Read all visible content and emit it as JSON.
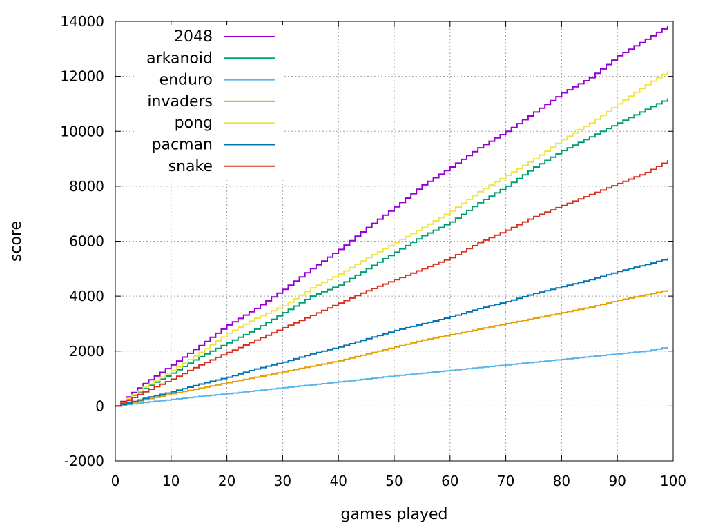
{
  "chart_data": {
    "type": "line",
    "xlabel": "games played",
    "ylabel": "score",
    "xlim": [
      0,
      100
    ],
    "ylim": [
      -2000,
      14000
    ],
    "xticks": [
      0,
      10,
      20,
      30,
      40,
      50,
      60,
      70,
      80,
      90,
      100
    ],
    "yticks": [
      -2000,
      0,
      2000,
      4000,
      6000,
      8000,
      10000,
      12000,
      14000
    ],
    "grid": true,
    "step": true,
    "legend_position": "top-left",
    "x": [
      0,
      5,
      10,
      15,
      20,
      25,
      30,
      35,
      40,
      45,
      50,
      55,
      60,
      65,
      70,
      75,
      80,
      85,
      90,
      95,
      99
    ],
    "series": [
      {
        "name": "2048",
        "color": "#9400d3",
        "values": [
          0,
          820,
          1500,
          2200,
          2950,
          3550,
          4250,
          5000,
          5700,
          6500,
          7250,
          8050,
          8700,
          9400,
          10000,
          10700,
          11400,
          11950,
          12750,
          13350,
          13850
        ]
      },
      {
        "name": "arkanoid",
        "color": "#009e73",
        "values": [
          0,
          650,
          1200,
          1800,
          2300,
          2800,
          3400,
          4000,
          4400,
          5000,
          5600,
          6200,
          6700,
          7400,
          8000,
          8700,
          9300,
          9800,
          10300,
          10800,
          11200
        ]
      },
      {
        "name": "enduro",
        "color": "#56b4e9",
        "values": [
          0,
          130,
          240,
          350,
          450,
          560,
          670,
          770,
          880,
          990,
          1100,
          1200,
          1300,
          1400,
          1500,
          1600,
          1700,
          1800,
          1900,
          2000,
          2150
        ]
      },
      {
        "name": "invaders",
        "color": "#e69f00",
        "values": [
          0,
          230,
          450,
          650,
          850,
          1050,
          1250,
          1450,
          1650,
          1900,
          2150,
          2400,
          2600,
          2800,
          3000,
          3200,
          3400,
          3600,
          3850,
          4050,
          4230
        ]
      },
      {
        "name": "pong",
        "color": "#f0e442",
        "values": [
          0,
          680,
          1300,
          1950,
          2650,
          3200,
          3650,
          4300,
          4800,
          5400,
          5950,
          6500,
          7100,
          7800,
          8400,
          9000,
          9700,
          10300,
          11000,
          11700,
          12200
        ]
      },
      {
        "name": "pacman",
        "color": "#0072b2",
        "values": [
          0,
          280,
          520,
          800,
          1050,
          1350,
          1600,
          1900,
          2150,
          2450,
          2750,
          3000,
          3250,
          3550,
          3800,
          4100,
          4350,
          4600,
          4900,
          5150,
          5380
        ]
      },
      {
        "name": "snake",
        "color": "#d7301f",
        "values": [
          0,
          520,
          980,
          1500,
          1950,
          2400,
          2850,
          3300,
          3750,
          4200,
          4600,
          5000,
          5400,
          5950,
          6400,
          6900,
          7300,
          7700,
          8100,
          8500,
          8950
        ]
      }
    ]
  }
}
